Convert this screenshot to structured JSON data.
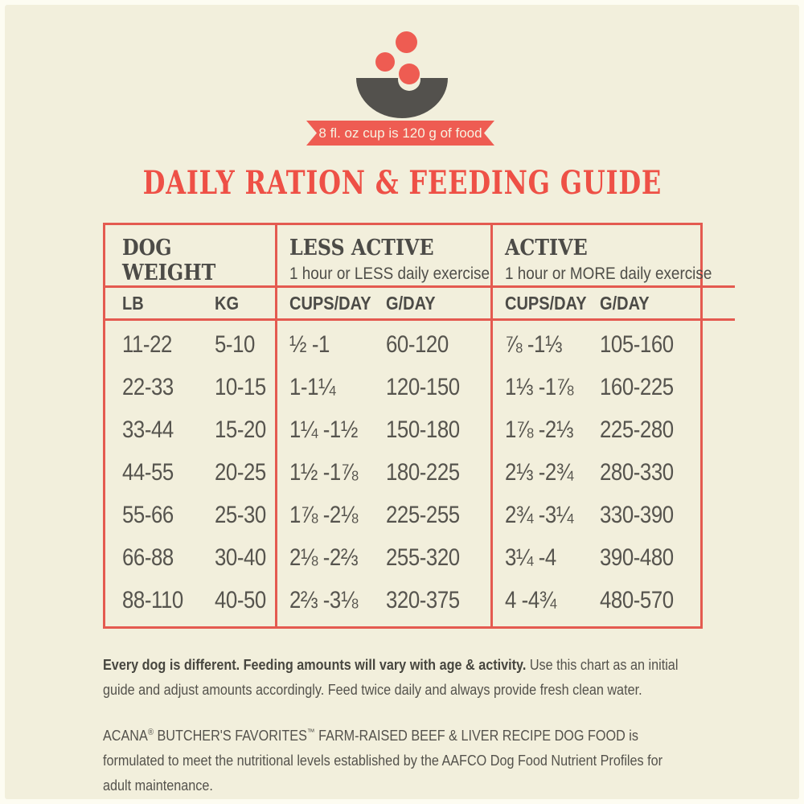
{
  "colors": {
    "accent_red": "#ee5c52",
    "title_red": "#ee5046",
    "border_red": "#e45a50",
    "background_cream": "#f2efdc",
    "dark_gray": "#4c4b47",
    "body_text_gray": "#56544e"
  },
  "banner": {
    "text": "8 fl. oz cup is 120 g of food"
  },
  "title": "DAILY RATION & FEEDING GUIDE",
  "icon": {
    "name": "dog-food-bowl-with-kibble"
  },
  "table": {
    "groups": [
      {
        "title": "DOG WEIGHT",
        "subtitle": ""
      },
      {
        "title": "LESS ACTIVE",
        "subtitle": "1 hour or LESS daily exercise"
      },
      {
        "title": "ACTIVE",
        "subtitle": "1 hour or MORE daily exercise"
      }
    ],
    "columns": {
      "weight_lb": "LB",
      "weight_kg": "KG",
      "less_cups": "CUPS/DAY",
      "less_g": "G/DAY",
      "active_cups": "CUPS/DAY",
      "active_g": "G/DAY"
    },
    "rows": [
      {
        "lb": "11-22",
        "kg": "5-10",
        "less_cups": "½ -1",
        "less_g": "60-120",
        "active_cups": "⅞ -1⅓",
        "active_g": "105-160"
      },
      {
        "lb": "22-33",
        "kg": "10-15",
        "less_cups": "1-1¼",
        "less_g": "120-150",
        "active_cups": "1⅓ -1⅞",
        "active_g": "160-225"
      },
      {
        "lb": "33-44",
        "kg": "15-20",
        "less_cups": "1¼ -1½",
        "less_g": "150-180",
        "active_cups": "1⅞ -2⅓",
        "active_g": "225-280"
      },
      {
        "lb": "44-55",
        "kg": "20-25",
        "less_cups": "1½ -1⅞",
        "less_g": "180-225",
        "active_cups": "2⅓ -2¾",
        "active_g": "280-330"
      },
      {
        "lb": "55-66",
        "kg": "25-30",
        "less_cups": "1⅞ -2⅛",
        "less_g": "225-255",
        "active_cups": "2¾ -3¼",
        "active_g": "330-390"
      },
      {
        "lb": "66-88",
        "kg": "30-40",
        "less_cups": "2⅛ -2⅔",
        "less_g": "255-320",
        "active_cups": "3¼ -4",
        "active_g": "390-480"
      },
      {
        "lb": "88-110",
        "kg": "40-50",
        "less_cups": "2⅔ -3⅛",
        "less_g": "320-375",
        "active_cups": "4 -4¾",
        "active_g": "480-570"
      }
    ]
  },
  "footnotes": {
    "p1_bold": "Every dog is different. Feeding amounts will vary with age & activity.",
    "p1_rest": " Use this chart as an initial guide and adjust amounts accordingly. Feed twice daily and always provide fresh clean water.",
    "p2_brand": "ACANA",
    "p2_reg_mark": "®",
    "p2_mid": " BUTCHER'S FAVORITES",
    "p2_tm_mark": "™",
    "p2_rest": " FARM-RAISED BEEF & LIVER RECIPE DOG FOOD is formulated to meet the nutritional levels established by the AAFCO Dog Food Nutrient Profiles for adult maintenance."
  }
}
